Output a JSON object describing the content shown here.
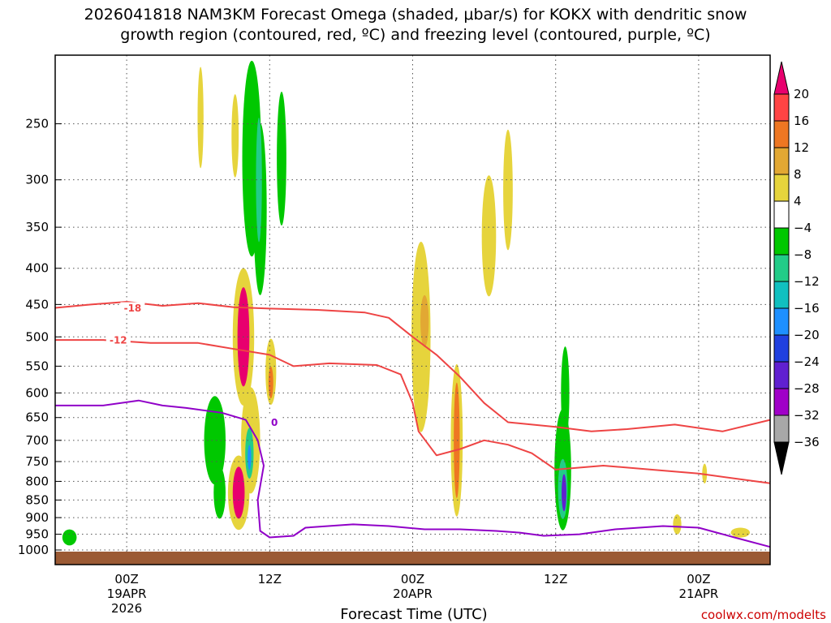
{
  "chart_data": {
    "type": "heatmap",
    "title_line1": "2026041818 NAM3KM Forecast Omega (shaded, μbar/s) for KOKX with dendritic snow",
    "title_line2": "growth region (contoured, red, ºC) and freezing level (contoured, purple, ºC)",
    "xlabel": "Forecast Time (UTC)",
    "credit": "coolwx.com/modelts",
    "x_ticks": [
      {
        "hour": 6,
        "label": "00Z",
        "sub": [
          "19APR",
          "2026"
        ]
      },
      {
        "hour": 18,
        "label": "12Z",
        "sub": []
      },
      {
        "hour": 30,
        "label": "00Z",
        "sub": [
          "20APR"
        ]
      },
      {
        "hour": 42,
        "label": "12Z",
        "sub": []
      },
      {
        "hour": 54,
        "label": "00Z",
        "sub": [
          "21APR"
        ]
      }
    ],
    "xlim": [
      0,
      60
    ],
    "y_ticks": [
      250,
      300,
      350,
      400,
      450,
      500,
      550,
      600,
      650,
      700,
      750,
      800,
      850,
      900,
      950,
      1000
    ],
    "ylim_hpa": [
      1000,
      200
    ],
    "colorbar": {
      "labels": [
        "20",
        "16",
        "12",
        "8",
        "4",
        "−4",
        "−8",
        "−12",
        "−16",
        "−20",
        "−24",
        "−28",
        "−32",
        "−36"
      ],
      "colors": [
        "#ff4444",
        "#ee7722",
        "#e2a833",
        "#e6d43c",
        "#ffffff",
        "#00c800",
        "#22cc88",
        "#10c0c0",
        "#1e90ff",
        "#2040e0",
        "#6020d0",
        "#a000c8",
        "#a8a8a8",
        "#000000"
      ],
      "top_arrow_color": "#e8006e"
    },
    "omega_fields": [
      {
        "hour": 15.8,
        "p": 500,
        "rx": 0.9,
        "rp": 110,
        "color": "#e6d43c"
      },
      {
        "hour": 15.8,
        "p": 500,
        "rx": 0.5,
        "rp": 80,
        "color": "#e8006e"
      },
      {
        "hour": 15.4,
        "p": 830,
        "rx": 0.9,
        "rp": 100,
        "color": "#e6d43c"
      },
      {
        "hour": 15.4,
        "p": 830,
        "rx": 0.5,
        "rp": 70,
        "color": "#e8006e"
      },
      {
        "hour": 16.4,
        "p": 700,
        "rx": 0.8,
        "rp": 120,
        "color": "#e6d43c"
      },
      {
        "hour": 18.1,
        "p": 560,
        "rx": 0.45,
        "rp": 60,
        "color": "#e6d43c"
      },
      {
        "hour": 18.1,
        "p": 580,
        "rx": 0.2,
        "rp": 30,
        "color": "#ee7722"
      },
      {
        "hour": 30.7,
        "p": 500,
        "rx": 0.8,
        "rp": 150,
        "color": "#e6d43c"
      },
      {
        "hour": 31.0,
        "p": 475,
        "rx": 0.35,
        "rp": 40,
        "color": "#e2a833"
      },
      {
        "hour": 33.7,
        "p": 700,
        "rx": 0.5,
        "rp": 170,
        "color": "#e6d43c"
      },
      {
        "hour": 33.7,
        "p": 700,
        "rx": 0.25,
        "rp": 130,
        "color": "#ee7722"
      },
      {
        "hour": 36.4,
        "p": 360,
        "rx": 0.6,
        "rp": 70,
        "color": "#e6d43c"
      },
      {
        "hour": 38.0,
        "p": 310,
        "rx": 0.4,
        "rp": 60,
        "color": "#e6d43c"
      },
      {
        "hour": 42.6,
        "p": 770,
        "rx": 0.7,
        "rp": 150,
        "color": "#00c800"
      },
      {
        "hour": 42.8,
        "p": 600,
        "rx": 0.35,
        "rp": 90,
        "color": "#00c800"
      },
      {
        "hour": 42.6,
        "p": 820,
        "rx": 0.4,
        "rp": 80,
        "color": "#22cc88"
      },
      {
        "hour": 42.7,
        "p": 830,
        "rx": 0.2,
        "rp": 50,
        "color": "#6020d0"
      },
      {
        "hour": 16.3,
        "p": 730,
        "rx": 0.35,
        "rp": 60,
        "color": "#22cc88"
      },
      {
        "hour": 16.3,
        "p": 740,
        "rx": 0.15,
        "rp": 30,
        "color": "#1e90ff"
      },
      {
        "hour": 16.5,
        "p": 280,
        "rx": 0.8,
        "rp": 100,
        "color": "#00c800"
      },
      {
        "hour": 17.2,
        "p": 330,
        "rx": 0.55,
        "rp": 90,
        "color": "#00c800"
      },
      {
        "hour": 17.1,
        "p": 300,
        "rx": 0.25,
        "rp": 60,
        "color": "#22cc88"
      },
      {
        "hour": 19.0,
        "p": 280,
        "rx": 0.4,
        "rp": 60,
        "color": "#00c800"
      },
      {
        "hour": 13.4,
        "p": 700,
        "rx": 0.9,
        "rp": 100,
        "color": "#00c800"
      },
      {
        "hour": 13.8,
        "p": 830,
        "rx": 0.5,
        "rp": 70,
        "color": "#00c800"
      },
      {
        "hour": 1.2,
        "p": 960,
        "rx": 0.6,
        "rp": 25,
        "color": "#00c800"
      },
      {
        "hour": 12.2,
        "p": 245,
        "rx": 0.25,
        "rp": 40,
        "color": "#e6d43c"
      },
      {
        "hour": 15.1,
        "p": 260,
        "rx": 0.3,
        "rp": 35,
        "color": "#e6d43c"
      },
      {
        "hour": 57.5,
        "p": 945,
        "rx": 0.8,
        "rp": 15,
        "color": "#e6d43c"
      },
      {
        "hour": 54.5,
        "p": 780,
        "rx": 0.2,
        "rp": 25,
        "color": "#e6d43c"
      },
      {
        "hour": 52.2,
        "p": 920,
        "rx": 0.35,
        "rp": 30,
        "color": "#e6d43c"
      }
    ],
    "contours": [
      {
        "label": "-18",
        "color": "#ee4444",
        "label_at": [
          6.5,
          49.2
        ],
        "points": [
          [
            0,
            455
          ],
          [
            3,
            450
          ],
          [
            6,
            446
          ],
          [
            9,
            452
          ],
          [
            12,
            448
          ],
          [
            15,
            454
          ],
          [
            18,
            456
          ],
          [
            22,
            458
          ],
          [
            26,
            462
          ],
          [
            28,
            470
          ],
          [
            30,
            500
          ],
          [
            32,
            530
          ],
          [
            34,
            570
          ],
          [
            36,
            620
          ],
          [
            38,
            660
          ],
          [
            42,
            670
          ],
          [
            45,
            680
          ],
          [
            48,
            675
          ],
          [
            52,
            665
          ],
          [
            56,
            680
          ],
          [
            60,
            655
          ]
        ]
      },
      {
        "label": "-12",
        "color": "#ee4444",
        "label_at": [
          5.3,
          51.2
        ],
        "points": [
          [
            0,
            505
          ],
          [
            4,
            505
          ],
          [
            8,
            510
          ],
          [
            12,
            510
          ],
          [
            15,
            520
          ],
          [
            18,
            530
          ],
          [
            20,
            550
          ],
          [
            23,
            545
          ],
          [
            27,
            548
          ],
          [
            29,
            565
          ],
          [
            30,
            620
          ],
          [
            30.5,
            680
          ],
          [
            32,
            735
          ],
          [
            34,
            720
          ],
          [
            36,
            700
          ],
          [
            38,
            710
          ],
          [
            40,
            730
          ],
          [
            42,
            770
          ],
          [
            46,
            760
          ],
          [
            50,
            770
          ],
          [
            54,
            780
          ],
          [
            60,
            805
          ]
        ]
      },
      {
        "label": "0",
        "color": "#9000c8",
        "label_at": [
          18.4,
          32.5
        ],
        "points": [
          [
            0,
            625
          ],
          [
            4,
            625
          ],
          [
            7,
            615
          ],
          [
            9,
            625
          ],
          [
            11,
            630
          ],
          [
            14,
            640
          ],
          [
            16,
            655
          ],
          [
            17,
            700
          ],
          [
            17.5,
            760
          ],
          [
            17,
            850
          ],
          [
            17.2,
            940
          ],
          [
            18,
            960
          ],
          [
            20,
            955
          ],
          [
            21,
            930
          ],
          [
            25,
            920
          ],
          [
            28,
            925
          ],
          [
            31,
            935
          ],
          [
            34,
            935
          ],
          [
            37,
            940
          ],
          [
            39,
            945
          ],
          [
            41,
            955
          ],
          [
            44,
            950
          ],
          [
            47,
            935
          ],
          [
            51,
            925
          ],
          [
            54,
            930
          ],
          [
            57,
            960
          ],
          [
            60,
            990
          ]
        ]
      }
    ]
  }
}
